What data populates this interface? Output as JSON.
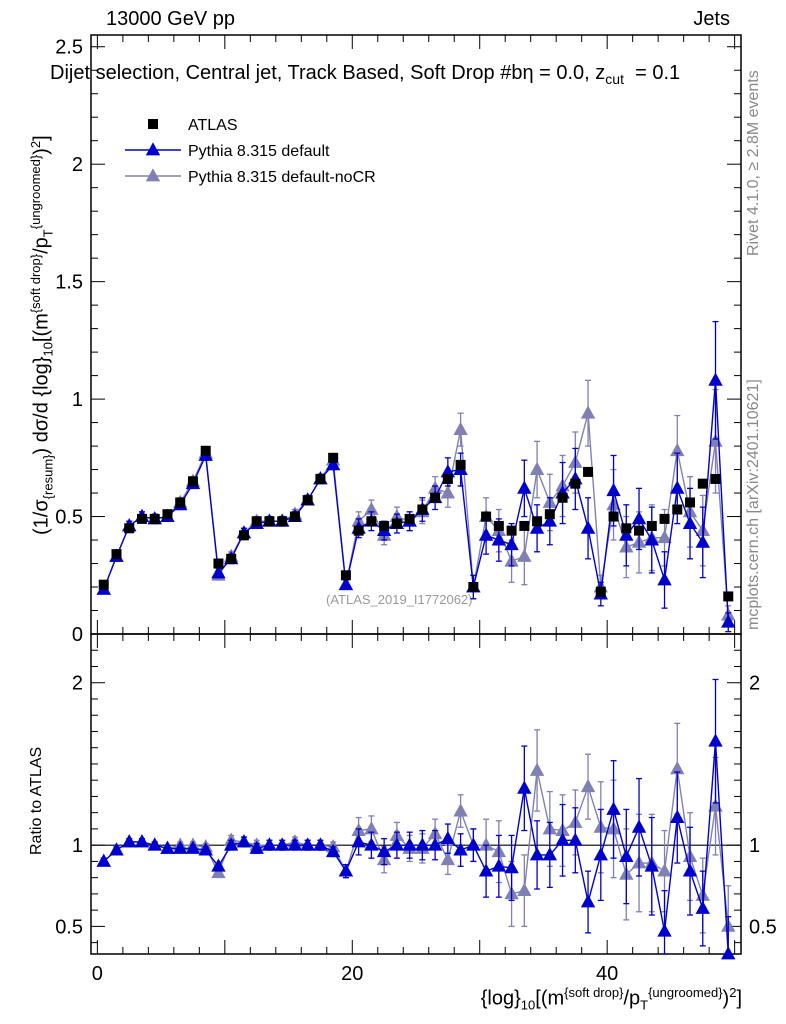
{
  "header": {
    "left": "13000 GeV pp",
    "right": "Jets",
    "selection": "Dijet selection, Central jet, Track Based, Soft Drop #b",
    "eta": "η = 0.0, z",
    "zcut_sub": "cut",
    "zcut_val": "= 0.1"
  },
  "sidebar": {
    "rivet": "Rivet 4.1.0, ≥ 2.8M events",
    "mcplots": "mcplots.cern.ch [arXiv:2401.10621]"
  },
  "watermark": "(ATLAS_2019_I1772062)",
  "ylabel_main": "(1/σ{resum}) dσ/d {log}10[(m{soft drop}/pT{ungroomed})2]",
  "ylabel_ratio": "Ratio to ATLAS",
  "xlabel": "{log}10[(m{soft drop}/pT{ungroomed})2]",
  "colors": {
    "atlas": "#000000",
    "py_default": "#0000cc",
    "py_nocr": "#8080b3"
  },
  "chart_data": {
    "type": "scatter",
    "x": [
      0.5,
      1.5,
      2.5,
      3.5,
      4.5,
      5.5,
      6.5,
      7.5,
      8.5,
      9.5,
      10.5,
      11.5,
      12.5,
      13.5,
      14.5,
      15.5,
      16.5,
      17.5,
      18.5,
      19.5,
      20.5,
      21.5,
      22.5,
      23.5,
      24.5,
      25.5,
      26.5,
      27.5,
      28.5,
      29.5,
      30.5,
      31.5,
      32.5,
      33.5,
      34.5,
      35.5,
      36.5,
      37.5,
      38.5,
      39.5,
      40.5,
      41.5,
      42.5,
      43.5,
      44.5,
      45.5,
      46.5,
      47.5,
      48.5,
      49.5
    ],
    "xlim": [
      -0.5,
      50.5
    ],
    "xticks": [
      0,
      20,
      40
    ],
    "main": {
      "ylim": [
        0,
        2.55
      ],
      "yticks": [
        0,
        0.5,
        1,
        1.5,
        2,
        2.5
      ],
      "ytick_labels": [
        "0",
        "0.5",
        "1",
        "1.5",
        "2",
        "2.5"
      ],
      "series": [
        {
          "name": "ATLAS",
          "marker": "square",
          "values": [
            0.21,
            0.34,
            0.45,
            0.49,
            0.49,
            0.51,
            0.56,
            0.65,
            0.78,
            0.3,
            0.32,
            0.42,
            0.48,
            0.48,
            0.48,
            0.5,
            0.57,
            0.66,
            0.75,
            0.25,
            0.44,
            0.48,
            0.46,
            0.47,
            0.49,
            0.53,
            0.58,
            0.66,
            0.72,
            0.2,
            0.5,
            0.46,
            0.44,
            0.46,
            0.48,
            0.51,
            0.58,
            0.64,
            0.69,
            0.18,
            0.5,
            0.45,
            0.44,
            0.46,
            0.49,
            0.53,
            0.56,
            0.64,
            0.66,
            0.16
          ]
        },
        {
          "name": "Pythia 8.315 default",
          "marker": "triangle",
          "values": [
            0.19,
            0.33,
            0.46,
            0.5,
            0.49,
            0.5,
            0.55,
            0.64,
            0.76,
            0.26,
            0.32,
            0.43,
            0.47,
            0.48,
            0.48,
            0.5,
            0.57,
            0.66,
            0.72,
            0.21,
            0.45,
            0.48,
            0.44,
            0.47,
            0.48,
            0.53,
            0.58,
            0.69,
            0.7,
            0.2,
            0.42,
            0.4,
            0.38,
            0.62,
            0.45,
            0.48,
            0.6,
            0.66,
            0.45,
            0.17,
            0.61,
            0.42,
            0.49,
            0.4,
            0.23,
            0.62,
            0.47,
            0.39,
            1.08,
            0.05
          ],
          "errors": [
            0.01,
            0.02,
            0.02,
            0.02,
            0.02,
            0.02,
            0.02,
            0.02,
            0.02,
            0.02,
            0.02,
            0.02,
            0.02,
            0.02,
            0.02,
            0.02,
            0.02,
            0.02,
            0.02,
            0.02,
            0.04,
            0.04,
            0.04,
            0.04,
            0.04,
            0.05,
            0.05,
            0.06,
            0.07,
            0.05,
            0.08,
            0.09,
            0.09,
            0.12,
            0.1,
            0.1,
            0.13,
            0.13,
            0.13,
            0.05,
            0.15,
            0.13,
            0.13,
            0.14,
            0.12,
            0.15,
            0.15,
            0.15,
            0.25,
            0.04
          ]
        },
        {
          "name": "Pythia 8.315 default-noCR",
          "marker": "triangle",
          "values": [
            0.19,
            0.33,
            0.46,
            0.5,
            0.49,
            0.5,
            0.56,
            0.65,
            0.77,
            0.25,
            0.33,
            0.43,
            0.48,
            0.48,
            0.48,
            0.51,
            0.57,
            0.66,
            0.74,
            0.21,
            0.48,
            0.53,
            0.42,
            0.5,
            0.48,
            0.52,
            0.62,
            0.6,
            0.87,
            0.2,
            0.5,
            0.44,
            0.31,
            0.33,
            0.7,
            0.56,
            0.63,
            0.73,
            0.94,
            0.2,
            0.55,
            0.37,
            0.39,
            0.41,
            0.41,
            0.78,
            0.52,
            0.44,
            0.82,
            0.08
          ],
          "errors": [
            0.01,
            0.02,
            0.02,
            0.02,
            0.02,
            0.02,
            0.02,
            0.02,
            0.02,
            0.02,
            0.02,
            0.02,
            0.02,
            0.02,
            0.02,
            0.02,
            0.02,
            0.02,
            0.02,
            0.02,
            0.04,
            0.04,
            0.04,
            0.04,
            0.04,
            0.05,
            0.05,
            0.06,
            0.07,
            0.05,
            0.08,
            0.09,
            0.09,
            0.12,
            0.12,
            0.12,
            0.13,
            0.13,
            0.14,
            0.05,
            0.15,
            0.13,
            0.13,
            0.14,
            0.12,
            0.15,
            0.15,
            0.15,
            0.22,
            0.04
          ]
        }
      ]
    },
    "ratio": {
      "ylim": [
        0.33,
        2.3
      ],
      "ytick_labels": [
        "0.5",
        "1",
        "2"
      ],
      "yticks": [
        0.5,
        1,
        2
      ],
      "reference": 1,
      "series": [
        {
          "name": "Pythia 8.315 default",
          "values": [
            0.9,
            0.97,
            1.02,
            1.02,
            1.0,
            0.98,
            0.98,
            0.98,
            0.97,
            0.87,
            1.0,
            1.02,
            0.98,
            1.0,
            1.0,
            1.0,
            1.0,
            1.0,
            0.96,
            0.84,
            1.02,
            1.0,
            0.96,
            1.0,
            1.0,
            1.0,
            1.0,
            1.04,
            0.97,
            1.0,
            0.84,
            0.87,
            0.86,
            1.35,
            0.94,
            0.94,
            1.03,
            1.03,
            0.65,
            0.94,
            1.22,
            0.93,
            1.11,
            0.87,
            0.47,
            1.17,
            0.84,
            0.61,
            1.64,
            0.31
          ],
          "errors": [
            0.02,
            0.02,
            0.02,
            0.02,
            0.02,
            0.02,
            0.02,
            0.02,
            0.02,
            0.02,
            0.03,
            0.03,
            0.03,
            0.03,
            0.03,
            0.03,
            0.03,
            0.03,
            0.03,
            0.04,
            0.08,
            0.08,
            0.08,
            0.08,
            0.08,
            0.09,
            0.09,
            0.09,
            0.1,
            0.1,
            0.16,
            0.19,
            0.2,
            0.26,
            0.21,
            0.2,
            0.22,
            0.2,
            0.19,
            0.28,
            0.3,
            0.29,
            0.3,
            0.3,
            0.25,
            0.28,
            0.27,
            0.23,
            0.38,
            0.25
          ]
        },
        {
          "name": "Pythia 8.315 default-noCR",
          "values": [
            0.9,
            0.97,
            1.02,
            1.02,
            1.0,
            0.98,
            1.0,
            1.0,
            0.99,
            0.83,
            1.03,
            1.02,
            1.0,
            1.0,
            1.0,
            1.02,
            1.0,
            1.0,
            0.99,
            0.84,
            1.09,
            1.1,
            0.91,
            1.06,
            0.98,
            0.98,
            1.07,
            0.91,
            1.21,
            1.0,
            1.0,
            0.96,
            0.7,
            0.72,
            1.46,
            1.1,
            1.09,
            1.14,
            1.36,
            1.11,
            1.1,
            0.82,
            0.89,
            0.89,
            0.84,
            1.47,
            0.93,
            0.69,
            1.24,
            0.5
          ],
          "errors": [
            0.02,
            0.02,
            0.02,
            0.02,
            0.02,
            0.02,
            0.02,
            0.02,
            0.02,
            0.02,
            0.03,
            0.03,
            0.03,
            0.03,
            0.03,
            0.03,
            0.03,
            0.03,
            0.03,
            0.04,
            0.08,
            0.08,
            0.08,
            0.08,
            0.08,
            0.09,
            0.09,
            0.09,
            0.1,
            0.1,
            0.16,
            0.19,
            0.2,
            0.22,
            0.25,
            0.23,
            0.22,
            0.2,
            0.2,
            0.28,
            0.3,
            0.28,
            0.3,
            0.3,
            0.25,
            0.28,
            0.27,
            0.23,
            0.3,
            0.25
          ]
        }
      ]
    },
    "legend": [
      {
        "label": "ATLAS"
      },
      {
        "label": "Pythia 8.315 default"
      },
      {
        "label": "Pythia 8.315 default-noCR"
      }
    ]
  }
}
